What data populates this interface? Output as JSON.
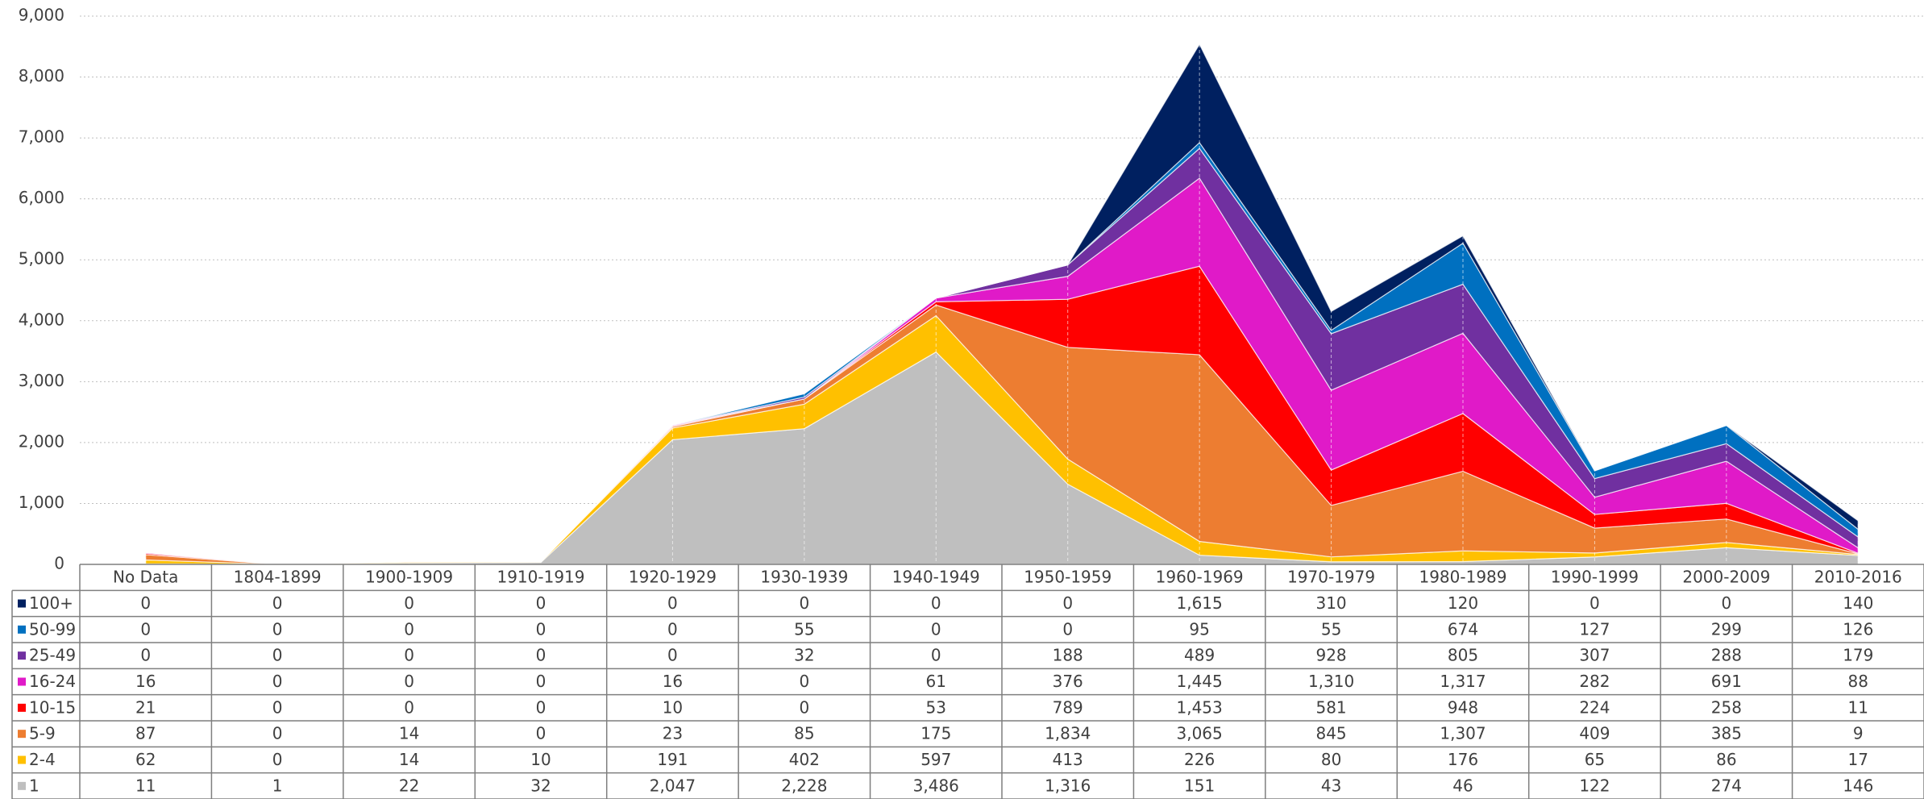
{
  "chart_data": {
    "type": "stacked_area",
    "categories": [
      "No Data",
      "1804-1899",
      "1900-1909",
      "1910-1919",
      "1920-1929",
      "1930-1939",
      "1940-1949",
      "1950-1959",
      "1960-1969",
      "1970-1979",
      "1980-1989",
      "1990-1999",
      "2000-2009",
      "2010-2016"
    ],
    "series": [
      {
        "name": "100+",
        "color": "#002060",
        "values": [
          0,
          0,
          0,
          0,
          0,
          0,
          0,
          0,
          1615,
          310,
          120,
          0,
          0,
          140
        ],
        "value_labels": [
          "0",
          "0",
          "0",
          "0",
          "0",
          "0",
          "0",
          "0",
          "1,615",
          "310",
          "120",
          "0",
          "0",
          "140"
        ]
      },
      {
        "name": "50-99",
        "color": "#0070c0",
        "values": [
          0,
          0,
          0,
          0,
          0,
          55,
          0,
          0,
          95,
          55,
          674,
          127,
          299,
          126
        ]
      },
      {
        "name": "25-49",
        "color": "#7030a0",
        "values": [
          0,
          0,
          0,
          0,
          0,
          32,
          0,
          188,
          489,
          928,
          805,
          307,
          288,
          179
        ]
      },
      {
        "name": "16-24",
        "color": "#e01ac8",
        "values": [
          16,
          0,
          0,
          0,
          16,
          0,
          61,
          376,
          1445,
          1310,
          1317,
          282,
          691,
          88
        ],
        "value_labels": [
          "16",
          "0",
          "0",
          "0",
          "16",
          "0",
          "61",
          "376",
          "1,445",
          "1,310",
          "1,317",
          "282",
          "691",
          "88"
        ]
      },
      {
        "name": "10-15",
        "color": "#ff0000",
        "values": [
          21,
          0,
          0,
          0,
          10,
          0,
          53,
          789,
          1453,
          581,
          948,
          224,
          258,
          11
        ],
        "value_labels": [
          "21",
          "0",
          "0",
          "0",
          "10",
          "0",
          "53",
          "789",
          "1,453",
          "581",
          "948",
          "224",
          "258",
          "11"
        ]
      },
      {
        "name": "5-9",
        "color": "#ed7d31",
        "values": [
          87,
          0,
          14,
          0,
          23,
          85,
          175,
          1834,
          3065,
          845,
          1307,
          409,
          385,
          9
        ],
        "value_labels": [
          "87",
          "0",
          "14",
          "0",
          "23",
          "85",
          "175",
          "1,834",
          "3,065",
          "845",
          "1,307",
          "409",
          "385",
          "9"
        ]
      },
      {
        "name": "2-4",
        "color": "#ffc000",
        "values": [
          62,
          0,
          14,
          10,
          191,
          402,
          597,
          413,
          226,
          80,
          176,
          65,
          86,
          17
        ]
      },
      {
        "name": "1",
        "color": "#bfbfbf",
        "values": [
          11,
          1,
          22,
          32,
          2047,
          2228,
          3486,
          1316,
          151,
          43,
          46,
          122,
          274,
          146
        ],
        "value_labels": [
          "11",
          "1",
          "22",
          "32",
          "2,047",
          "2,228",
          "3,486",
          "1,316",
          "151",
          "43",
          "46",
          "122",
          "274",
          "146"
        ]
      }
    ],
    "ylim": [
      0,
      9000
    ],
    "yticks": [
      0,
      {
        "value": 1000,
        "label": "1,000"
      },
      {
        "value": 2000,
        "label": "2,000"
      },
      {
        "value": 3000,
        "label": "3,000"
      },
      {
        "value": 4000,
        "label": "4,000"
      },
      {
        "value": 5000,
        "label": "5,000"
      },
      {
        "value": 6000,
        "label": "6,000"
      },
      {
        "value": 7000,
        "label": "7,000"
      },
      {
        "value": 8000,
        "label": "8,000"
      },
      {
        "value": 9000,
        "label": "9,000"
      }
    ],
    "grid": true
  }
}
